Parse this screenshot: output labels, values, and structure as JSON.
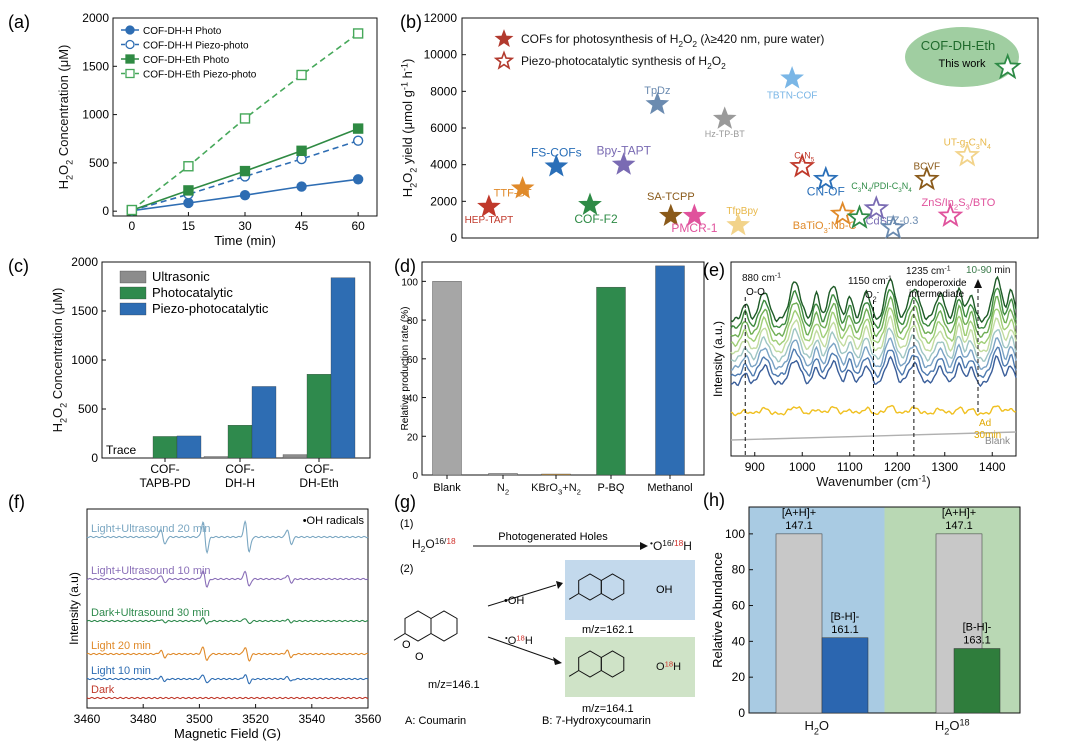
{
  "panels": {
    "a": {
      "label": "(a)",
      "chart_data": {
        "type": "line",
        "xlabel": "Time (min)",
        "ylabel": "H2O2 Concentration (μM)",
        "xlim": [
          -5,
          65
        ],
        "ylim": [
          -50,
          2000
        ],
        "xticks": [
          0,
          15,
          30,
          45,
          60
        ],
        "yticks": [
          0,
          500,
          1000,
          1500,
          2000
        ],
        "series": [
          {
            "name": "COF-DH-H Photo",
            "color": "#2e6db3",
            "marker": "circle",
            "filled": true,
            "dashed": false,
            "x": [
              0,
              15,
              30,
              45,
              60
            ],
            "y": [
              5,
              85,
              165,
              255,
              330
            ]
          },
          {
            "name": "COF-DH-H Piezo-photo",
            "color": "#2e6db3",
            "marker": "circle",
            "filled": false,
            "dashed": true,
            "x": [
              0,
              15,
              30,
              45,
              60
            ],
            "y": [
              8,
              175,
              360,
              540,
              730
            ]
          },
          {
            "name": "COF-DH-Eth Photo",
            "color": "#2f8a43",
            "marker": "square",
            "filled": true,
            "dashed": false,
            "x": [
              0,
              15,
              30,
              45,
              60
            ],
            "y": [
              10,
              215,
              415,
              625,
              855
            ]
          },
          {
            "name": "COF-DH-Eth Piezo-photo",
            "color": "#46a85a",
            "marker": "square",
            "filled": false,
            "dashed": true,
            "x": [
              0,
              15,
              30,
              45,
              60
            ],
            "y": [
              12,
              465,
              960,
              1410,
              1840
            ]
          }
        ]
      }
    },
    "b": {
      "label": "(b)",
      "chart_data": {
        "type": "scatter",
        "ylabel": "H2O2 yield (μmol g-1 h-1)",
        "ylim": [
          0,
          12000
        ],
        "yticks": [
          0,
          2000,
          4000,
          6000,
          8000,
          10000,
          12000
        ],
        "legend": [
          "COFs for photosynthesis of H2O2 (λ≥420 nm, pure water)",
          "Piezo-photocatalytic synthesis of H2O2"
        ],
        "highlight": {
          "name": "COF-DH-Eth",
          "note": "This work"
        },
        "points": [
          {
            "name": "HEP-TAPT",
            "x": 1,
            "y": 1700,
            "color": "#c0392b",
            "filled": true
          },
          {
            "name": "TTF-BT",
            "x": 2,
            "y": 2700,
            "color": "#e08a2a",
            "filled": true
          },
          {
            "name": "FS-COFs",
            "x": 3,
            "y": 3900,
            "color": "#2a6fb8",
            "filled": true
          },
          {
            "name": "COF-F2",
            "x": 4,
            "y": 1800,
            "color": "#2e8b46",
            "filled": true
          },
          {
            "name": "Bpy-TAPT",
            "x": 5,
            "y": 4000,
            "color": "#7a6bb3",
            "filled": true
          },
          {
            "name": "TpDz",
            "x": 6,
            "y": 7300,
            "color": "#6b8bb0",
            "filled": true
          },
          {
            "name": "SA-TCPP",
            "x": 6.4,
            "y": 1200,
            "color": "#8a5a1a",
            "filled": true
          },
          {
            "name": "PMCR-1",
            "x": 7.1,
            "y": 1200,
            "color": "#e0529c",
            "filled": true
          },
          {
            "name": "Hz-TP-BT",
            "x": 8,
            "y": 6500,
            "color": "#9a9a9a",
            "filled": true
          },
          {
            "name": "TfpBpy",
            "x": 8.4,
            "y": 700,
            "color": "#f2d38a",
            "filled": true
          },
          {
            "name": "TBTN-COF",
            "x": 10,
            "y": 8700,
            "color": "#7ab6e6",
            "filled": true
          },
          {
            "name": "C3N5",
            "x": 10.3,
            "y": 3900,
            "color": "#c0392b",
            "filled": false
          },
          {
            "name": "CN-OF",
            "x": 11,
            "y": 3200,
            "color": "#2a6fb8",
            "filled": false
          },
          {
            "name": "BaTiO3:Nb-C",
            "x": 11.5,
            "y": 1300,
            "color": "#e08a2a",
            "filled": false
          },
          {
            "name": "C3N4/PDI-C3N4",
            "x": 12,
            "y": 1100,
            "color": "#2e8b46",
            "filled": false
          },
          {
            "name": "CdS",
            "x": 12.5,
            "y": 1600,
            "color": "#7a6bb3",
            "filled": false
          },
          {
            "name": "LFZ-0.3",
            "x": 13,
            "y": 550,
            "color": "#6b8bb0",
            "filled": false
          },
          {
            "name": "BCVF",
            "x": 14,
            "y": 3200,
            "color": "#8a5a1a",
            "filled": false
          },
          {
            "name": "ZnS/In2S3/BTO",
            "x": 14.7,
            "y": 1200,
            "color": "#e0529c",
            "filled": false
          },
          {
            "name": "UT-g-C3N4",
            "x": 15.2,
            "y": 4500,
            "color": "#f2d38a",
            "filled": false
          },
          {
            "name": "COF-DH-Eth",
            "x": 16.4,
            "y": 9300,
            "color": "#2e8b46",
            "filled": false
          }
        ]
      }
    },
    "c": {
      "label": "(c)",
      "chart_data": {
        "type": "bar",
        "ylabel": "H2O2 Concentration (μM)",
        "ylim": [
          0,
          2000
        ],
        "yticks": [
          0,
          500,
          1000,
          1500,
          2000
        ],
        "categories": [
          "COF-TAPB-PD",
          "COF-DH-H",
          "COF-DH-Eth"
        ],
        "category_lines": [
          [
            "COF-",
            "TAPB-PD"
          ],
          [
            "COF-",
            "DH-H"
          ],
          [
            "COF-",
            "DH-Eth"
          ]
        ],
        "annotation": "Trace",
        "series": [
          {
            "name": "Ultrasonic",
            "color": "#8c8c8c",
            "values": [
              0,
              15,
              35
            ]
          },
          {
            "name": "Photocatalytic",
            "color": "#2f8a4d",
            "values": [
              220,
              335,
              855
            ]
          },
          {
            "name": "Piezo-photocatalytic",
            "color": "#2e6db3",
            "values": [
              225,
              730,
              1840
            ]
          }
        ]
      }
    },
    "d": {
      "label": "(d)",
      "chart_data": {
        "type": "bar",
        "ylabel": "Relative production rate (%)",
        "ylim": [
          0,
          110
        ],
        "yticks": [
          0,
          20,
          40,
          60,
          80,
          100
        ],
        "categories": [
          "Blank",
          "N2",
          "KBrO3+N2",
          "P-BQ",
          "Methanol"
        ],
        "values": [
          100,
          0.8,
          0.5,
          97,
          108
        ],
        "colors": [
          "#a6a6a6",
          "#a6a6a6",
          "#d39a3a",
          "#2f8a4d",
          "#2e6db3"
        ]
      }
    },
    "e": {
      "label": "(e)",
      "chart_data": {
        "type": "line",
        "xlabel": "Wavenumber (cm-1)",
        "ylabel": "Intensity (a.u.)",
        "xlim": [
          850,
          1450
        ],
        "xticks": [
          900,
          1000,
          1100,
          1200,
          1300,
          1400
        ],
        "annotations": [
          "880 cm-1",
          "O-O",
          "1150 cm-1",
          "O2-",
          "1235 cm-1",
          "endoperoxide",
          "intermediate",
          "10-90 min",
          "Ad",
          "30min",
          "Blank"
        ],
        "marker_lines_x": [
          880,
          1150,
          1235,
          1370
        ],
        "series_names": [
          "Blank",
          "Ad 30min",
          "10 min",
          "20 min",
          "30 min",
          "40 min",
          "50 min",
          "60 min",
          "70 min",
          "80 min",
          "90 min"
        ],
        "series_colors": [
          "#b0b0b0",
          "#f0c020",
          "#3a5e9a",
          "#4f7bb0",
          "#7aa3c5",
          "#9fc6c4",
          "#c2dca0",
          "#9fce76",
          "#6fae55",
          "#3d8a3f",
          "#1d5a26"
        ]
      }
    },
    "f": {
      "label": "(f)",
      "chart_data": {
        "type": "line",
        "xlabel": "Magnetic Field (G)",
        "ylabel": "Intensity (a.u)",
        "xlim": [
          3460,
          3560
        ],
        "xticks": [
          3460,
          3480,
          3500,
          3520,
          3540,
          3560
        ],
        "annotation": "•OH radicals",
        "peak_positions": [
          3487,
          3502,
          3517,
          3532
        ],
        "series": [
          {
            "name": "Light+Ultrasound 20 min",
            "color": "#7ba7c2",
            "amplitude": 1.0
          },
          {
            "name": "Light+Ultrasound 10 min",
            "color": "#8a6fb8",
            "amplitude": 0.5
          },
          {
            "name": "Dark+Ultrasound 30 min",
            "color": "#2f8a4d",
            "amplitude": 0.18
          },
          {
            "name": "Light 20 min",
            "color": "#e08a2a",
            "amplitude": 0.45
          },
          {
            "name": "Light 10 min",
            "color": "#2e6db3",
            "amplitude": 0.28
          },
          {
            "name": "Dark",
            "color": "#c0392b",
            "amplitude": 0.0
          }
        ]
      }
    },
    "g": {
      "label": "(g)",
      "step1": "(1)",
      "step2": "(2)",
      "reactant": "H2O16/18",
      "reactant_main": "H",
      "reactant_sub": "2",
      "reactant_o": "O",
      "reactant_sup_a": "16/",
      "reactant_sup_b": "18",
      "arrow_label": "Photogenerated Holes",
      "product_dot": "•",
      "product_o": "O",
      "product_sup_a": "16/",
      "product_sup_b": "18",
      "product_h": "H",
      "oh_label": "•OH",
      "o18h_dot": "•",
      "o18h_o": "O",
      "o18h_sup": "18",
      "o18h_h": "H",
      "product_oh": "OH",
      "product_o18_o": "O",
      "product_o18_sup": "18",
      "product_o18_h": "H",
      "mz_a": "m/z=146.1",
      "mz_b1": "m/z=162.1",
      "mz_b2": "m/z=164.1",
      "caption_a": "A:  Coumarin",
      "caption_b": "B:  7-Hydroxycoumarin"
    },
    "h": {
      "label": "(h)",
      "chart_data": {
        "type": "bar",
        "ylabel": "Relative Abundance",
        "ylim": [
          0,
          115
        ],
        "yticks": [
          0,
          20,
          40,
          60,
          80,
          100
        ],
        "groups": [
          {
            "name": "H2O",
            "bg": "#a9cbe3",
            "bars": [
              {
                "label1": "[A+H]+",
                "label2": "147.1",
                "value": 100,
                "color": "#c8c8c8"
              },
              {
                "label1": "[B-H]-",
                "label2": "161.1",
                "value": 42,
                "color": "#2b66b0"
              }
            ]
          },
          {
            "name": "H2O18",
            "bg": "#b9d8b4",
            "bars": [
              {
                "label1": "[A+H]+",
                "label2": "147.1",
                "value": 100,
                "color": "#c8c8c8"
              },
              {
                "label1": "[B-H]-",
                "label2": "163.1",
                "value": 36,
                "color": "#2f7d3c"
              }
            ]
          }
        ]
      }
    }
  }
}
